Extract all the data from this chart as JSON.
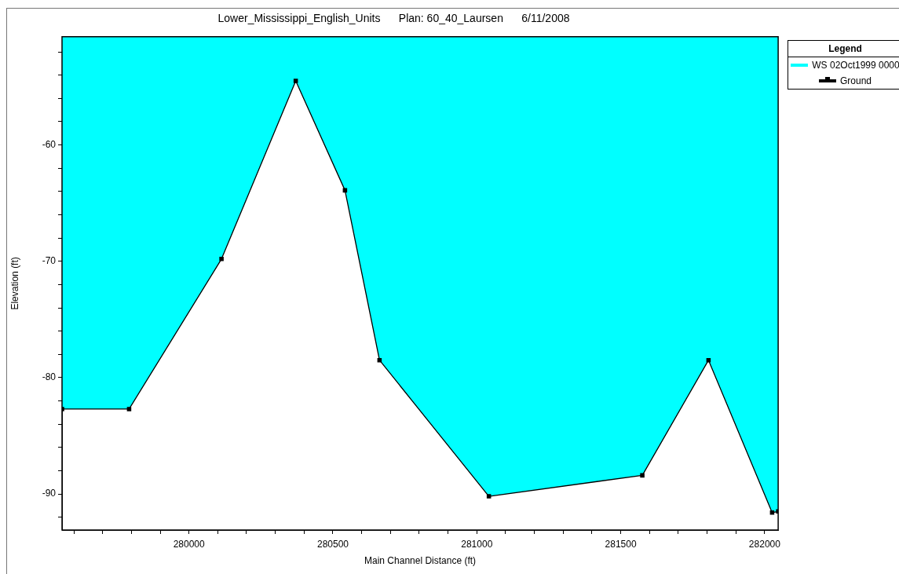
{
  "chart_data": {
    "type": "line",
    "title": "Lower_Mississippi_English_Units      Plan: 60_40_Laursen      6/11/2008",
    "xlabel": "Main Channel Distance (ft)",
    "ylabel": "Elevation (ft)",
    "legend_title": "Legend",
    "legend": "right",
    "grid": false,
    "xlim": [
      279559,
      282047
    ],
    "ylim": [
      -93.1,
      -50.7
    ],
    "xticks": [
      {
        "value": 279600,
        "label": null
      },
      {
        "value": 279700,
        "label": null
      },
      {
        "value": 279800,
        "label": null
      },
      {
        "value": 279900,
        "label": null
      },
      280000,
      {
        "value": 280100,
        "label": null
      },
      {
        "value": 280200,
        "label": null
      },
      {
        "value": 280300,
        "label": null
      },
      {
        "value": 280400,
        "label": null
      },
      280500,
      {
        "value": 280600,
        "label": null
      },
      {
        "value": 280700,
        "label": null
      },
      {
        "value": 280800,
        "label": null
      },
      {
        "value": 280900,
        "label": null
      },
      281000,
      {
        "value": 281100,
        "label": null
      },
      {
        "value": 281200,
        "label": null
      },
      {
        "value": 281300,
        "label": null
      },
      {
        "value": 281400,
        "label": null
      },
      281500,
      {
        "value": 281600,
        "label": null
      },
      {
        "value": 281700,
        "label": null
      },
      {
        "value": 281800,
        "label": null
      },
      {
        "value": 281900,
        "label": null
      },
      282000
    ],
    "yticks": [
      {
        "value": -92,
        "label": null
      },
      -90,
      {
        "value": -88,
        "label": null
      },
      {
        "value": -86,
        "label": null
      },
      {
        "value": -84,
        "label": null
      },
      {
        "value": -82,
        "label": null
      },
      -80,
      {
        "value": -78,
        "label": null
      },
      {
        "value": -76,
        "label": null
      },
      {
        "value": -74,
        "label": null
      },
      {
        "value": -72,
        "label": null
      },
      -70,
      {
        "value": -68,
        "label": null
      },
      {
        "value": -66,
        "label": null
      },
      {
        "value": -64,
        "label": null
      },
      {
        "value": -62,
        "label": null
      },
      -60,
      {
        "value": -58,
        "label": null
      },
      {
        "value": -56,
        "label": null
      },
      {
        "value": -54,
        "label": null
      },
      {
        "value": -52,
        "label": null
      }
    ],
    "series": [
      {
        "name": "WS 02Oct1999 0000",
        "color": "#00ffff",
        "marker": "none",
        "x": [
          279559,
          279792,
          280113,
          280371,
          280542,
          280662,
          281042,
          281575,
          281805,
          282026,
          282047
        ],
        "values": [
          null,
          null,
          null,
          null,
          null,
          null,
          null,
          null,
          null,
          null,
          null
        ],
        "lower": [
          -82.7,
          -82.7,
          -69.8,
          -54.5,
          -63.9,
          -78.5,
          -90.2,
          -88.4,
          -78.5,
          -91.6,
          -91.5
        ],
        "upper": [
          -50.7,
          -50.7,
          -50.7,
          -50.7,
          -50.7,
          -50.7,
          -50.7,
          -50.7,
          -50.7,
          -50.7,
          -50.7
        ]
      },
      {
        "name": "Ground",
        "color": "#000000",
        "marker": "square",
        "x": [
          279559,
          279792,
          280113,
          280371,
          280542,
          280662,
          281042,
          281575,
          281805,
          282026,
          282047
        ],
        "values": [
          -82.7,
          -82.7,
          -69.8,
          -54.5,
          -63.9,
          -78.5,
          -90.2,
          -88.4,
          -78.5,
          -91.6,
          -91.5
        ]
      }
    ]
  }
}
